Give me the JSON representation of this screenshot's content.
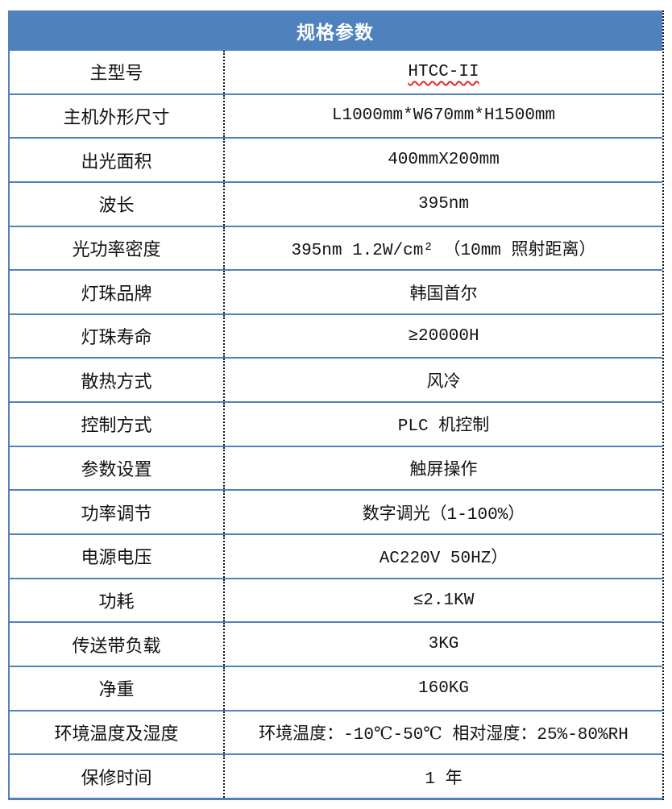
{
  "table": {
    "title": "规格参数",
    "rows": [
      {
        "label": "主型号",
        "value": "HTCC-II",
        "spellcheck": true
      },
      {
        "label": "主机外形尺寸",
        "value": "L1000mm*W670mm*H1500mm"
      },
      {
        "label": "出光面积",
        "value": "400mmX200mm"
      },
      {
        "label": "波长",
        "value": "395nm"
      },
      {
        "label": "光功率密度",
        "value": "395nm 1.2W/cm² （10mm 照射距离）"
      },
      {
        "label": "灯珠品牌",
        "value": "韩国首尔"
      },
      {
        "label": "灯珠寿命",
        "value": "≥20000H"
      },
      {
        "label": "散热方式",
        "value": "风冷"
      },
      {
        "label": "控制方式",
        "value": "PLC 机控制"
      },
      {
        "label": "参数设置",
        "value": "触屏操作"
      },
      {
        "label": "功率调节",
        "value": "数字调光（1-100%）"
      },
      {
        "label": "电源电压",
        "value": "AC220V  50HZ）"
      },
      {
        "label": "功耗",
        "value": "≤2.1KW"
      },
      {
        "label": "传送带负载",
        "value": "3KG"
      },
      {
        "label": "净重",
        "value": "160KG"
      },
      {
        "label": "环境温度及湿度",
        "value": "环境温度：-10℃-50℃  相对湿度：25%-80%RH"
      },
      {
        "label": "保修时间",
        "value": "1 年"
      }
    ],
    "colors": {
      "header_bg": "#4f81bd",
      "header_text": "#ffffff",
      "line_blue": "#4f81bd",
      "divider_black": "#151515",
      "text_color": "#121212",
      "spellcheck_red": "#e22a2a"
    }
  }
}
